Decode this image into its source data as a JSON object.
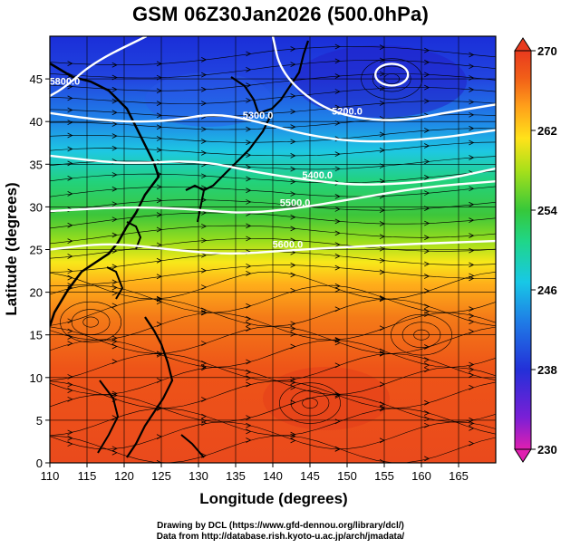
{
  "title": "GSM 06Z30Jan2026 (500.0hPa)",
  "axes": {
    "xlabel": "Longitude (degrees)",
    "ylabel": "Latitude  (degrees)",
    "xlim": [
      110,
      170
    ],
    "ylim": [
      0,
      50
    ],
    "xticks": [
      110,
      115,
      120,
      125,
      130,
      135,
      140,
      145,
      150,
      155,
      160,
      165
    ],
    "yticks": [
      0,
      5,
      10,
      15,
      20,
      25,
      30,
      35,
      40,
      45
    ]
  },
  "colorbar": {
    "min": 230,
    "max": 270,
    "tick_labels": [
      "270",
      "262",
      "254",
      "246",
      "238",
      "230"
    ],
    "colors": [
      "#e01fb0",
      "#7a1fd6",
      "#2330d8",
      "#1f7ce6",
      "#18c8e6",
      "#1fd68a",
      "#36c83a",
      "#a8e01a",
      "#ffe21a",
      "#ffa01a",
      "#f26018",
      "#e83a1e"
    ]
  },
  "contour_labels": [
    "5200.0",
    "5300.0",
    "5400.0",
    "5500.0",
    "5600.0",
    "5800.0"
  ],
  "credits": {
    "line1": "Drawing by DCL (https://www.gfd-dennou.org/library/dcl/)",
    "line2": "Data from http://database.rish.kyoto-u.ac.jp/arch/jmadata/"
  },
  "chart_data": {
    "type": "heatmap",
    "title": "GSM 06Z30Jan2026 (500.0hPa)",
    "xlabel": "Longitude (degrees)",
    "ylabel": "Latitude  (degrees)",
    "xlim": [
      110,
      170
    ],
    "ylim": [
      0,
      50
    ],
    "colorbar_range": [
      230,
      270
    ],
    "field_profile": {
      "latitude": [
        0,
        10,
        20,
        24,
        28,
        32,
        36,
        40,
        44,
        48,
        50
      ],
      "value_approx": [
        266,
        266,
        265,
        260,
        254,
        250,
        247,
        242,
        238,
        236,
        236
      ]
    },
    "height_contours": [
      {
        "label": "5200.0",
        "points": [
          [
            140,
            50
          ],
          [
            141,
            46
          ],
          [
            145,
            42.5
          ],
          [
            150,
            40.5
          ],
          [
            157,
            40
          ],
          [
            163,
            41
          ],
          [
            170,
            42
          ]
        ]
      },
      {
        "label": "5300.0",
        "points": [
          [
            110,
            41
          ],
          [
            118,
            40
          ],
          [
            126,
            40
          ],
          [
            132,
            41
          ],
          [
            138,
            40
          ],
          [
            144,
            38.5
          ],
          [
            152,
            37.5
          ],
          [
            162,
            38
          ],
          [
            170,
            39
          ]
        ]
      },
      {
        "label": "5400.0",
        "points": [
          [
            110,
            36
          ],
          [
            120,
            35
          ],
          [
            130,
            35.5
          ],
          [
            138,
            34
          ],
          [
            146,
            33
          ],
          [
            152,
            32.5
          ],
          [
            162,
            33
          ],
          [
            170,
            34.5
          ]
        ]
      },
      {
        "label": "5500.0",
        "points": [
          [
            110,
            29.5
          ],
          [
            120,
            30
          ],
          [
            128,
            29.8
          ],
          [
            136,
            29.2
          ],
          [
            143,
            29.8
          ],
          [
            150,
            30.8
          ],
          [
            160,
            32.3
          ],
          [
            170,
            33
          ]
        ]
      },
      {
        "label": "5600.0",
        "points": [
          [
            110,
            25
          ],
          [
            118,
            25.8
          ],
          [
            126,
            25
          ],
          [
            134,
            24.4
          ],
          [
            142,
            24.9
          ],
          [
            150,
            25.3
          ],
          [
            160,
            25.7
          ],
          [
            170,
            26
          ]
        ]
      },
      {
        "label": "5800.0",
        "points": [
          [
            123,
            50
          ],
          [
            116,
            47
          ],
          [
            112,
            44
          ],
          [
            110,
            43
          ]
        ]
      }
    ],
    "closed_contour_center": [
      156,
      45.5
    ]
  }
}
